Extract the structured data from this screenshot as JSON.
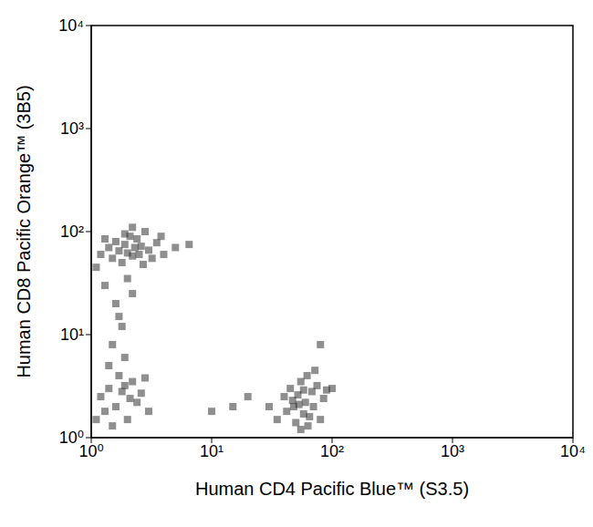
{
  "chart_data": {
    "type": "scatter",
    "x_label": "Human CD4 Pacific Blue™ (S3.5)",
    "y_label": "Human CD8 Pacific Orange™ (3B5)",
    "log": true,
    "grid": false,
    "color": "#333333",
    "marker": "square",
    "xlim": [
      1,
      10000
    ],
    "ylim": [
      1,
      10000
    ],
    "xticks": [
      {
        "value": 1,
        "label": "10⁰"
      },
      {
        "value": 10,
        "label": "10¹"
      },
      {
        "value": 100,
        "label": "10²"
      },
      {
        "value": 1000,
        "label": "10³"
      },
      {
        "value": 10000,
        "label": "10⁴"
      }
    ],
    "yticks": [
      {
        "value": 1,
        "label": "10⁰"
      },
      {
        "value": 10,
        "label": "10¹"
      },
      {
        "value": 100,
        "label": "10²"
      },
      {
        "value": 1000,
        "label": "10³"
      },
      {
        "value": 10000,
        "label": "10⁴"
      }
    ],
    "x": [
      1.2,
      1.4,
      1.5,
      1.6,
      1.7,
      1.8,
      1.9,
      2.0,
      2.1,
      2.2,
      2.3,
      2.4,
      2.5,
      2.6,
      2.8,
      3.0,
      3.2,
      3.5,
      4.0,
      5.0,
      1.1,
      1.3,
      2.7,
      1.9,
      2.2,
      6.5,
      3.8,
      1.3,
      1.6,
      1.8,
      2.0,
      1.5,
      1.7,
      2.2,
      1.4,
      1.9,
      1.2,
      1.4,
      1.6,
      1.8,
      2.0,
      2.2,
      2.4,
      1.5,
      1.7,
      2.6,
      3.0,
      1.3,
      2.1,
      1.9,
      2.8,
      1.1,
      35,
      40,
      42,
      45,
      48,
      50,
      52,
      55,
      58,
      60,
      62,
      65,
      68,
      70,
      75,
      80,
      85,
      90,
      30,
      100,
      55,
      47,
      63,
      72,
      53,
      58,
      15,
      20,
      10,
      80
    ],
    "values": [
      60,
      70,
      55,
      80,
      65,
      50,
      75,
      62,
      90,
      58,
      70,
      85,
      60,
      72,
      100,
      66,
      55,
      78,
      60,
      70,
      45,
      85,
      48,
      95,
      110,
      75,
      90,
      30,
      20,
      12,
      35,
      8,
      15,
      25,
      5,
      6,
      2.5,
      3,
      2,
      2.8,
      1.5,
      3.5,
      2.2,
      1.3,
      4,
      2.7,
      1.8,
      1.8,
      2.4,
      3.2,
      3.8,
      1.5,
      1.5,
      2.5,
      1.8,
      3,
      2,
      1.4,
      2.6,
      3.5,
      1.7,
      2.2,
      4,
      1.6,
      2.8,
      2,
      3.2,
      1.5,
      2.4,
      2.9,
      2,
      3,
      1.2,
      2.3,
      1.3,
      4.5,
      2.1,
      2.9,
      2,
      2.5,
      1.8,
      8
    ]
  }
}
